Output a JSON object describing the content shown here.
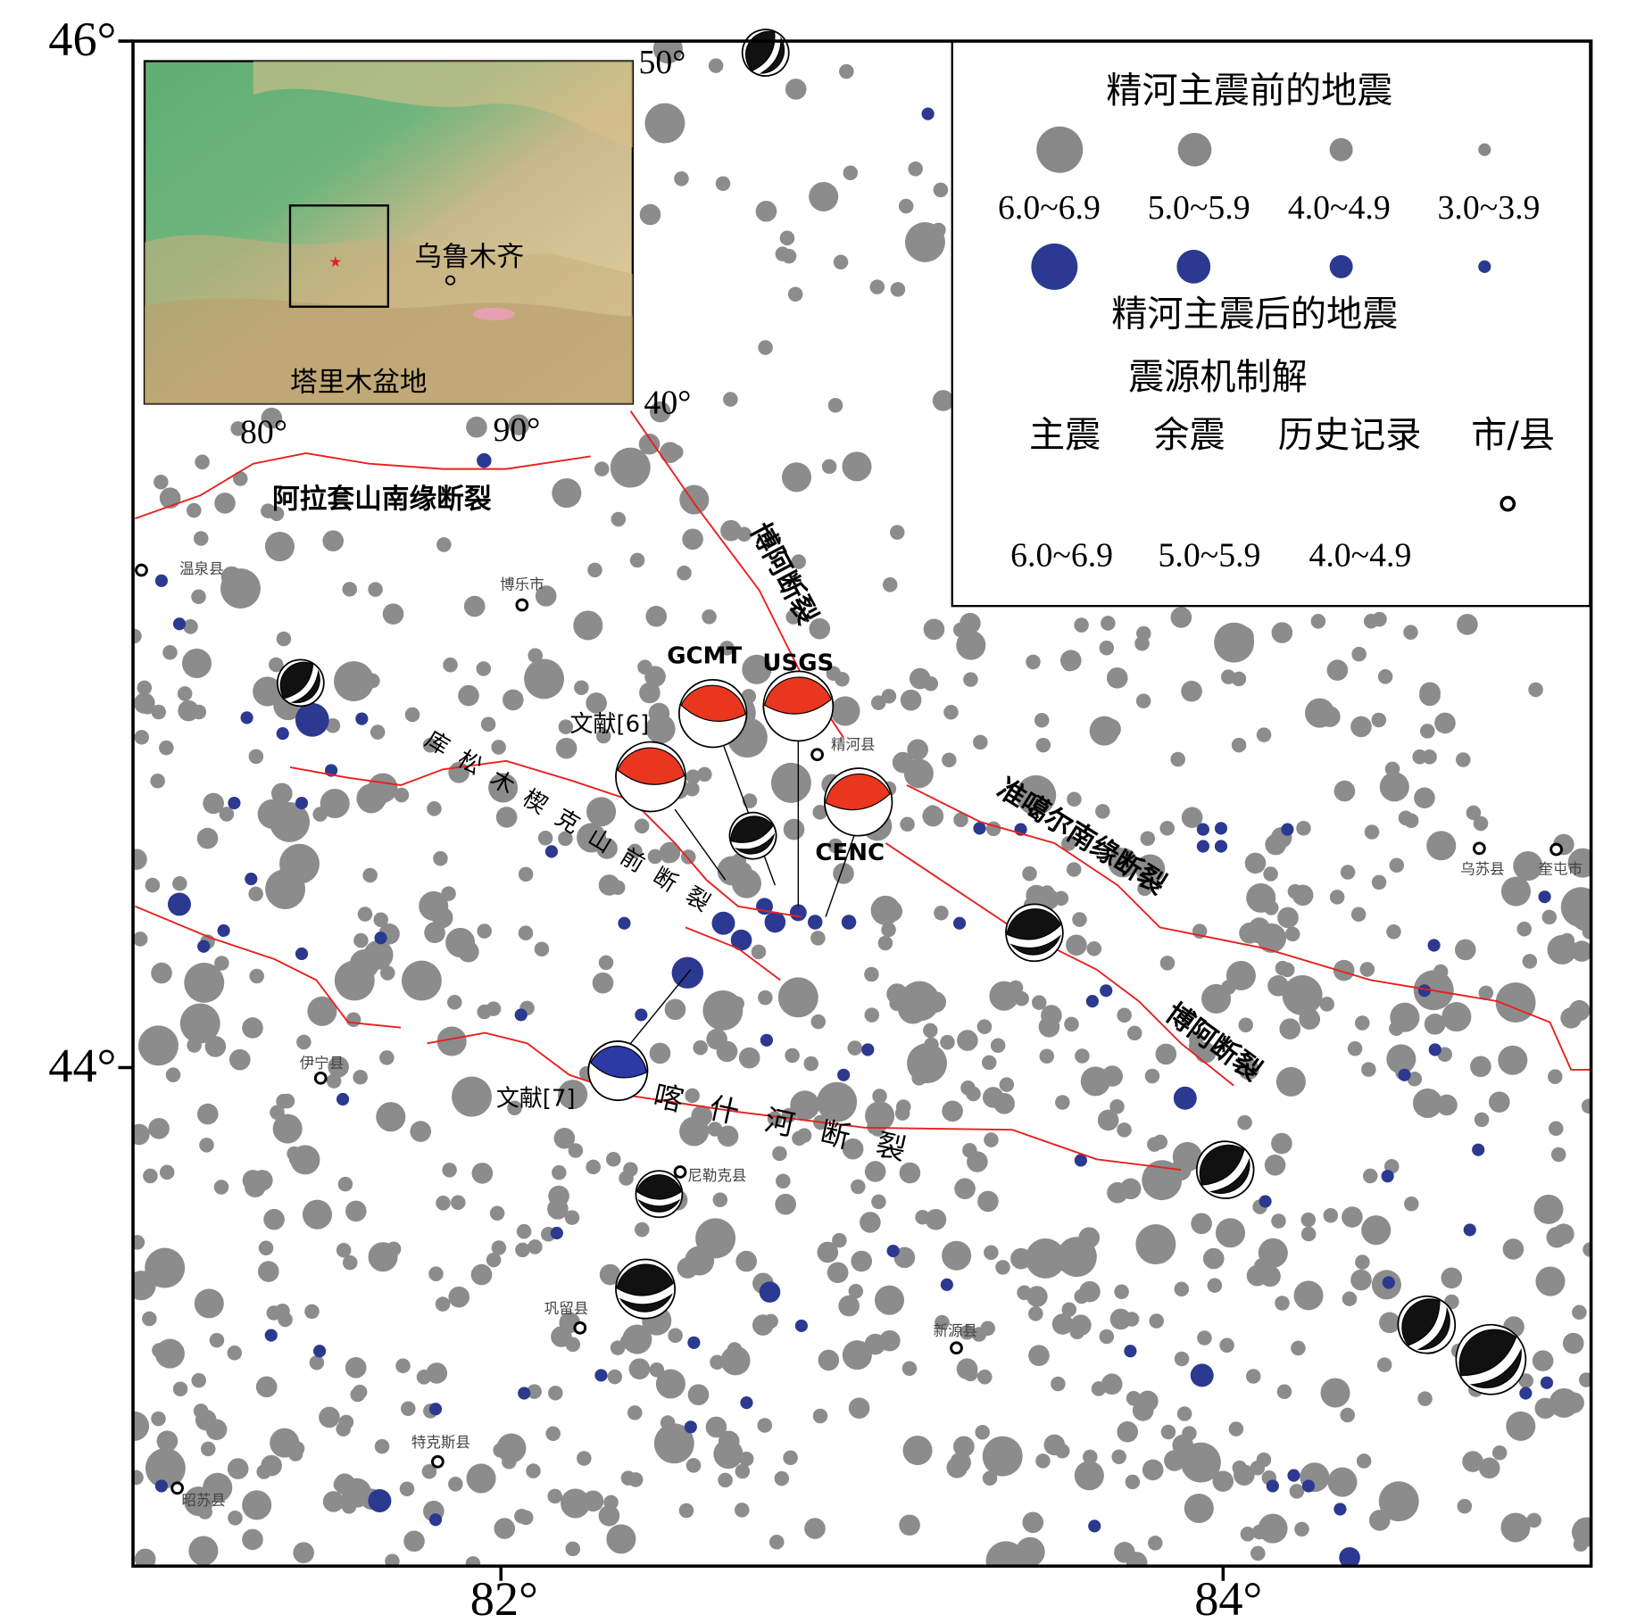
{
  "map": {
    "lat_labels": [
      "46°",
      "44°"
    ],
    "lon_labels": [
      "82°",
      "84°"
    ]
  },
  "inset": {
    "lat_labels": [
      "50°",
      "40°"
    ],
    "lon_labels": [
      "80°",
      "90°"
    ],
    "city": "乌鲁木齐",
    "basin": "塔里木盆地"
  },
  "legend": {
    "before_title": "精河主震前的地震",
    "magnitudes": [
      "6.0~6.9",
      "5.0~5.9",
      "4.0~4.9",
      "3.0~3.9"
    ],
    "after_title": "精河主震后的地震",
    "mechanism_title": "震源机制解",
    "mechanism_kinds": [
      "主震",
      "余震",
      "历史记录",
      "市/县"
    ],
    "mechanism_magnitudes": [
      "6.0~6.9",
      "5.0~5.9",
      "4.0~4.9"
    ]
  },
  "faults": [
    "阿拉套山南缘断裂",
    "博阿断裂",
    "库松木楔克山前断裂",
    "准噶尔南缘断裂",
    "博阿断裂",
    "喀什河断裂"
  ],
  "mechanisms": [
    "GCMT",
    "USGS",
    "CENC",
    "文献[6]",
    "文献[7]"
  ],
  "towns": [
    "温泉县",
    "博乐市",
    "精河县",
    "伊宁县",
    "尼勒克县",
    "巩留县",
    "新源县",
    "特克斯县",
    "昭苏县",
    "乌苏县",
    "奎屯市"
  ]
}
